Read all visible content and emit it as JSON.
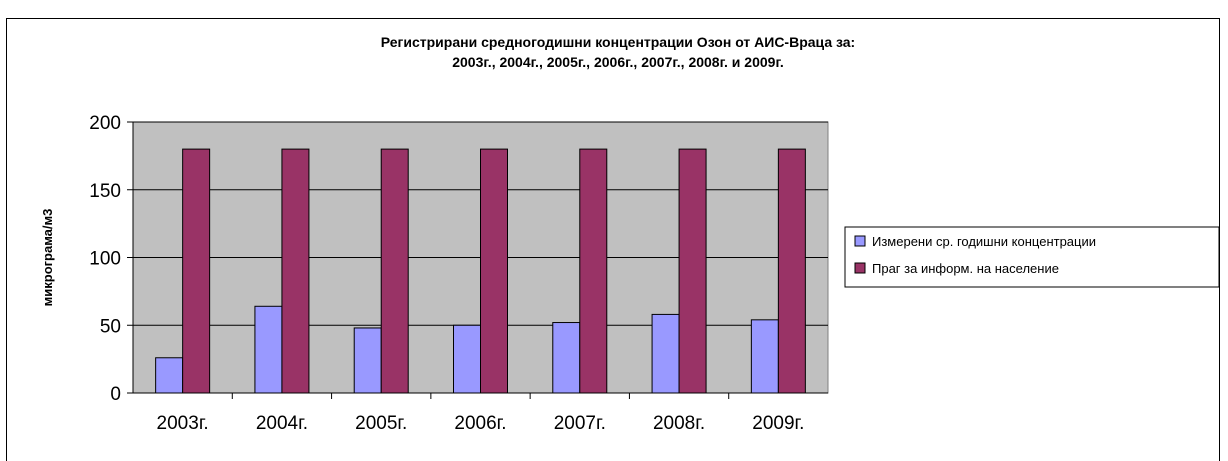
{
  "chart_data": {
    "type": "bar",
    "title": [
      "Регистрирани средногодишни концентрации Озон от АИС-Враца за:",
      "2003г., 2004г., 2005г., 2006г., 2007г., 2008г. и 2009г."
    ],
    "ylabel": "микрограма/м3",
    "xlabel": "",
    "categories": [
      "2003г.",
      "2004г.",
      "2005г.",
      "2006г.",
      "2007г.",
      "2008г.",
      "2009г."
    ],
    "ylim": [
      0,
      200
    ],
    "yticks": [
      0,
      50,
      100,
      150,
      200
    ],
    "grid": true,
    "legend_position": "right",
    "series": [
      {
        "name": "Измерени ср. годишни концентрации",
        "values": [
          26,
          64,
          48,
          50,
          52,
          58,
          54
        ],
        "color": "#9999ff"
      },
      {
        "name": "Праг за информ. на население",
        "values": [
          180,
          180,
          180,
          180,
          180,
          180,
          180
        ],
        "color": "#993366"
      }
    ],
    "plot_background": "#c0c0c0"
  }
}
